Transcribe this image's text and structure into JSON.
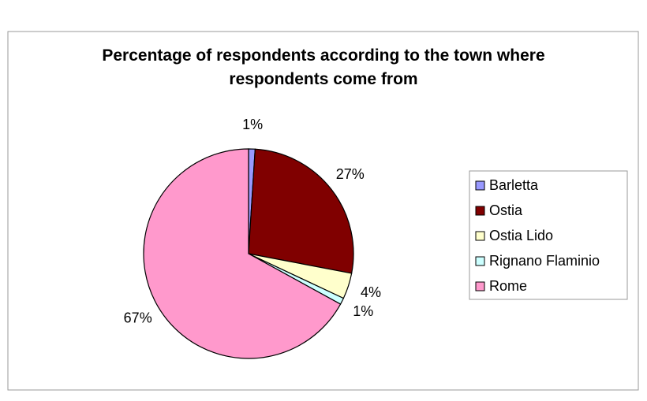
{
  "chart_data": {
    "type": "pie",
    "title": "Percentage of respondents according to the town where respondents come from",
    "categories": [
      "Barletta",
      "Ostia",
      "Ostia Lido",
      "Rignano Flaminio",
      "Rome"
    ],
    "values": [
      1,
      27,
      4,
      1,
      67
    ],
    "value_labels": [
      "1%",
      "27%",
      "4%",
      "1%",
      "67%"
    ],
    "colors": [
      "#9999ff",
      "#800000",
      "#ffffcc",
      "#ccffff",
      "#ff99cc"
    ],
    "legend": "right"
  }
}
